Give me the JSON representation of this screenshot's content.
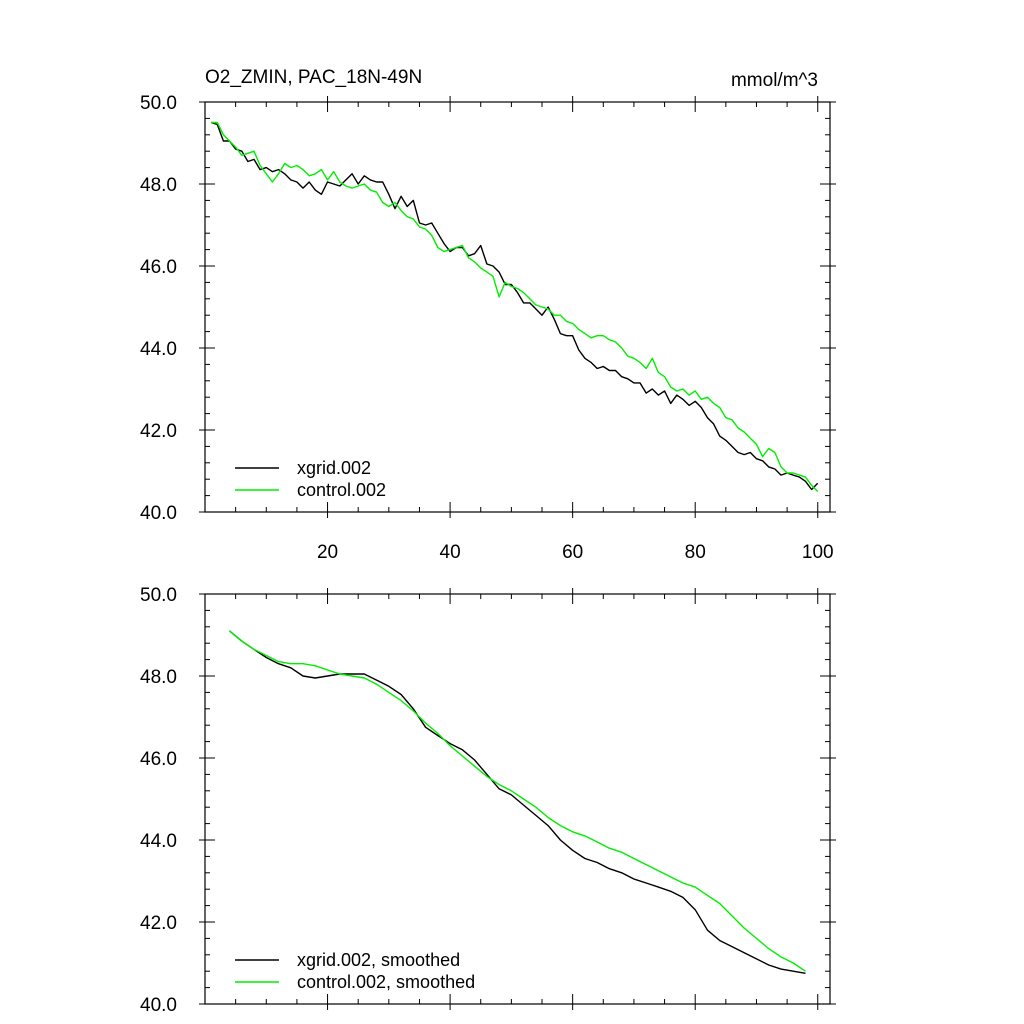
{
  "chart_data": [
    {
      "type": "line",
      "title": "O2_ZMIN, PAC_18N-49N",
      "units": "mmol/m^3",
      "xlim": [
        0,
        102
      ],
      "ylim": [
        40,
        50
      ],
      "xticks": [
        20,
        40,
        60,
        80,
        100
      ],
      "xtick_labels": [
        "20",
        "40",
        "60",
        "80",
        "100"
      ],
      "yticks": [
        40,
        42,
        44,
        46,
        48,
        50
      ],
      "ytick_labels": [
        "40.0",
        "42.0",
        "44.0",
        "46.0",
        "48.0",
        "50.0"
      ],
      "legend_position": "bottom-left",
      "series": [
        {
          "name": "xgrid.002",
          "color": "#000000",
          "x_start": 1,
          "values": [
            49.5,
            49.45,
            49.05,
            49.05,
            48.85,
            48.8,
            48.55,
            48.6,
            48.35,
            48.4,
            48.3,
            48.35,
            48.25,
            48.1,
            48.05,
            47.9,
            48.05,
            47.85,
            47.75,
            48.05,
            48.0,
            47.95,
            48.1,
            48.25,
            48.0,
            48.2,
            48.1,
            48.05,
            48.05,
            47.75,
            47.4,
            47.7,
            47.45,
            47.6,
            47.05,
            47.0,
            47.05,
            46.8,
            46.55,
            46.35,
            46.45,
            46.45,
            46.25,
            46.3,
            46.5,
            46.05,
            46.0,
            45.85,
            45.55,
            45.55,
            45.35,
            45.1,
            45.1,
            44.95,
            44.8,
            45.0,
            44.7,
            44.35,
            44.3,
            44.3,
            43.95,
            43.75,
            43.65,
            43.5,
            43.55,
            43.45,
            43.45,
            43.3,
            43.25,
            43.15,
            43.15,
            42.9,
            43.0,
            42.85,
            42.95,
            42.65,
            42.85,
            42.75,
            42.6,
            42.7,
            42.55,
            42.3,
            42.15,
            41.85,
            41.75,
            41.6,
            41.45,
            41.4,
            41.45,
            41.3,
            41.25,
            41.1,
            41.05,
            40.9,
            40.95,
            40.9,
            40.85,
            40.75,
            40.55,
            40.7
          ]
        },
        {
          "name": "control.002",
          "color": "#00ee00",
          "x_start": 1,
          "values": [
            49.5,
            49.5,
            49.2,
            49.05,
            48.9,
            48.7,
            48.75,
            48.8,
            48.45,
            48.25,
            48.05,
            48.25,
            48.5,
            48.4,
            48.45,
            48.35,
            48.2,
            48.25,
            48.35,
            48.1,
            48.3,
            48.05,
            47.95,
            47.9,
            47.95,
            48.0,
            47.85,
            47.8,
            47.55,
            47.45,
            47.55,
            47.35,
            47.2,
            47.15,
            46.95,
            46.9,
            46.75,
            46.45,
            46.35,
            46.4,
            46.45,
            46.5,
            46.2,
            46.1,
            45.95,
            45.85,
            45.75,
            45.25,
            45.6,
            45.5,
            45.45,
            45.35,
            45.2,
            45.05,
            45.0,
            44.95,
            44.8,
            44.8,
            44.65,
            44.6,
            44.45,
            44.35,
            44.25,
            44.3,
            44.3,
            44.2,
            44.15,
            44.0,
            43.8,
            43.75,
            43.65,
            43.5,
            43.75,
            43.4,
            43.3,
            43.05,
            42.95,
            43.0,
            42.85,
            42.95,
            42.75,
            42.8,
            42.65,
            42.55,
            42.3,
            42.25,
            42.05,
            41.95,
            41.8,
            41.65,
            41.35,
            41.55,
            41.45,
            41.1,
            40.95,
            40.95,
            40.9,
            40.85,
            40.65,
            40.5
          ]
        }
      ]
    },
    {
      "type": "line",
      "title": "",
      "units": "",
      "xlim": [
        0,
        102
      ],
      "ylim": [
        40,
        50
      ],
      "xticks": [
        20,
        40,
        60,
        80,
        100
      ],
      "yticks": [
        40,
        42,
        44,
        46,
        48,
        50
      ],
      "ytick_labels": [
        "40.0",
        "42.0",
        "44.0",
        "46.0",
        "48.0",
        "50.0"
      ],
      "legend_position": "bottom-left",
      "series": [
        {
          "name": "xgrid.002, smoothed",
          "color": "#000000",
          "x": [
            4,
            6,
            8,
            10,
            12,
            14,
            16,
            18,
            20,
            22,
            24,
            26,
            28,
            30,
            32,
            34,
            36,
            38,
            40,
            42,
            44,
            46,
            48,
            50,
            52,
            54,
            56,
            58,
            60,
            62,
            64,
            66,
            68,
            70,
            72,
            74,
            76,
            78,
            80,
            82,
            84,
            86,
            88,
            90,
            92,
            94,
            96,
            98
          ],
          "values": [
            49.1,
            48.85,
            48.65,
            48.45,
            48.3,
            48.2,
            48.0,
            47.95,
            48.0,
            48.05,
            48.05,
            48.05,
            47.9,
            47.75,
            47.55,
            47.2,
            46.75,
            46.55,
            46.35,
            46.2,
            45.95,
            45.6,
            45.25,
            45.1,
            44.85,
            44.6,
            44.35,
            44.0,
            43.75,
            43.55,
            43.45,
            43.3,
            43.2,
            43.05,
            42.95,
            42.85,
            42.75,
            42.6,
            42.3,
            41.8,
            41.55,
            41.4,
            41.25,
            41.1,
            40.95,
            40.85,
            40.8,
            40.75
          ]
        },
        {
          "name": "control.002, smoothed",
          "color": "#00ee00",
          "x": [
            4,
            6,
            8,
            10,
            12,
            14,
            16,
            18,
            20,
            22,
            24,
            26,
            28,
            30,
            32,
            34,
            36,
            38,
            40,
            42,
            44,
            46,
            48,
            50,
            52,
            54,
            56,
            58,
            60,
            62,
            64,
            66,
            68,
            70,
            72,
            74,
            76,
            78,
            80,
            82,
            84,
            86,
            88,
            90,
            92,
            94,
            96,
            98
          ],
          "values": [
            49.1,
            48.85,
            48.65,
            48.5,
            48.35,
            48.3,
            48.3,
            48.25,
            48.15,
            48.05,
            48.0,
            47.95,
            47.8,
            47.6,
            47.4,
            47.15,
            46.85,
            46.6,
            46.3,
            46.05,
            45.8,
            45.55,
            45.35,
            45.2,
            45.0,
            44.8,
            44.55,
            44.35,
            44.2,
            44.1,
            43.95,
            43.8,
            43.7,
            43.55,
            43.4,
            43.25,
            43.1,
            42.95,
            42.85,
            42.65,
            42.45,
            42.15,
            41.85,
            41.6,
            41.35,
            41.15,
            41.0,
            40.8
          ]
        }
      ]
    }
  ]
}
